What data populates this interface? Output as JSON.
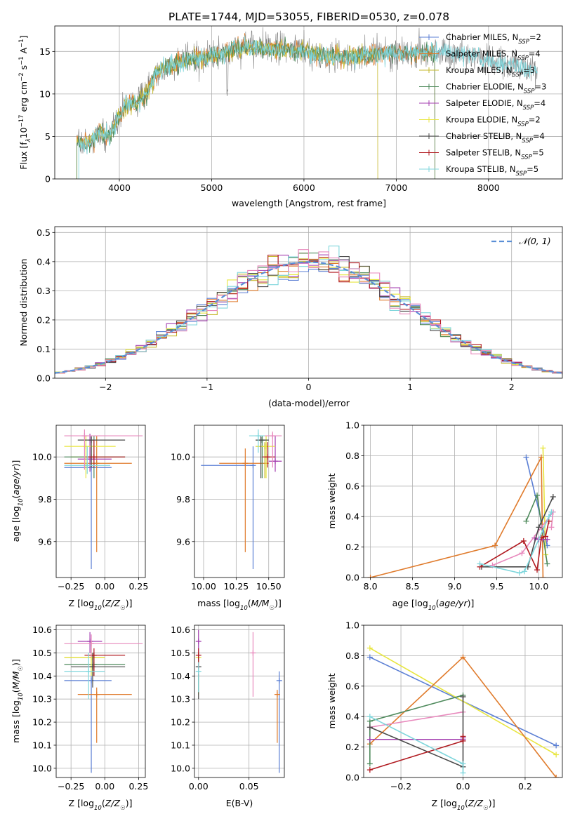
{
  "figure_title": "PLATE=1744, MJD=53055, FIBERID=0530, z=0.078",
  "colors": {
    "chabrier_miles": "#5b7fd4",
    "salpeter_miles": "#e07b2c",
    "kroupa_miles": "#c6b82c",
    "chabrier_elodie": "#4e8a5c",
    "salpeter_elodie": "#a43fb0",
    "kroupa_elodie": "#e8e63f",
    "chabrier_stelib": "#4a4a4a",
    "salpeter_stelib": "#b11b21",
    "kroupa_stelib": "#7fd6dc",
    "gaussian": "#5b8fd6",
    "pink": "#e889bd",
    "data": "#7f7f7f"
  },
  "chart_data": [
    {
      "type": "line",
      "panel": "spectrum",
      "xlabel": "wavelength [Angstrom, rest frame]",
      "ylabel": "Flux [f",
      "ylabel_parts": [
        "Flux [f",
        "λ",
        "10",
        "−17",
        " erg cm",
        "−2",
        " s",
        "−1",
        " A",
        "−1",
        "]"
      ],
      "xlim": [
        3300,
        8800
      ],
      "ylim": [
        0,
        18
      ],
      "xticks": [
        "4000",
        "5000",
        "6000",
        "7000",
        "8000"
      ],
      "yticks": [
        "0",
        "5",
        "10",
        "15"
      ],
      "legend_position": "right",
      "legend": [
        {
          "label": "Chabrier MILES, N",
          "sub": "SSP",
          "val": "=2",
          "color_key": "chabrier_miles"
        },
        {
          "label": "Salpeter MILES, N",
          "sub": "SSP",
          "val": "=4",
          "color_key": "salpeter_miles"
        },
        {
          "label": "Kroupa MILES, N",
          "sub": "SSP",
          "val": "=3",
          "color_key": "kroupa_miles"
        },
        {
          "label": "Chabrier ELODIE, N",
          "sub": "SSP",
          "val": "=3",
          "color_key": "chabrier_elodie"
        },
        {
          "label": "Salpeter ELODIE, N",
          "sub": "SSP",
          "val": "=4",
          "color_key": "salpeter_elodie"
        },
        {
          "label": "Kroupa ELODIE, N",
          "sub": "SSP",
          "val": "=2",
          "color_key": "kroupa_elodie"
        },
        {
          "label": "Chabrier STELIB, N",
          "sub": "SSP",
          "val": "=4",
          "color_key": "chabrier_stelib"
        },
        {
          "label": "Salpeter STELIB, N",
          "sub": "SSP",
          "val": "=5",
          "color_key": "salpeter_stelib"
        },
        {
          "label": "Kroupa STELIB, N",
          "sub": "SSP",
          "val": "=5",
          "color_key": "kroupa_stelib"
        }
      ],
      "continuum": [
        [
          3540,
          4.5
        ],
        [
          3650,
          4.0
        ],
        [
          3800,
          5.5
        ],
        [
          3900,
          5.0
        ],
        [
          4000,
          7.5
        ],
        [
          4100,
          9.0
        ],
        [
          4200,
          9.0
        ],
        [
          4300,
          10.0
        ],
        [
          4400,
          12.5
        ],
        [
          4600,
          13.5
        ],
        [
          4800,
          14.2
        ],
        [
          5000,
          14.5
        ],
        [
          5200,
          15.0
        ],
        [
          5400,
          15.5
        ],
        [
          5600,
          15.3
        ],
        [
          5800,
          15.3
        ],
        [
          6000,
          15.0
        ],
        [
          6200,
          14.5
        ],
        [
          6400,
          14.3
        ],
        [
          6600,
          14.5
        ],
        [
          6800,
          14.8
        ],
        [
          7000,
          14.8
        ],
        [
          7200,
          14.8
        ],
        [
          7400,
          15.0
        ],
        [
          7600,
          14.8
        ],
        [
          7800,
          14.5
        ],
        [
          8000,
          14.0
        ],
        [
          8200,
          13.5
        ],
        [
          8400,
          13.0
        ],
        [
          8530,
          12.8
        ]
      ]
    },
    {
      "type": "step",
      "panel": "residuals",
      "xlabel": "(data-model)/error",
      "ylabel": "Normed distribution",
      "xlim": [
        -2.5,
        2.5
      ],
      "ylim": [
        0,
        0.52
      ],
      "xticks": [
        "−2",
        "−1",
        "0",
        "1",
        "2"
      ],
      "yticks": [
        "0.0",
        "0.1",
        "0.2",
        "0.3",
        "0.4",
        "0.5"
      ],
      "gaussian_label": "𝒩(0, 1)",
      "bin_width": 0.1
    },
    {
      "type": "scatter",
      "panel": "age_vs_Z",
      "xlabel": "Z [log",
      "ylabel": "age  [log",
      "xlim": [
        -0.36,
        0.3
      ],
      "ylim": [
        9.43,
        10.15
      ],
      "xticks": [
        "−0.25",
        "0.00",
        "0.25"
      ],
      "yticks": [
        "9.6",
        "9.8",
        "10.0"
      ],
      "points": [
        {
          "c": "chabrier_miles",
          "x": -0.1,
          "y": 9.95,
          "xl": -0.3,
          "xh": 0.05,
          "yl": 9.47,
          "yh": 10.05
        },
        {
          "c": "salpeter_miles",
          "x": -0.06,
          "y": 9.97,
          "xl": -0.3,
          "xh": 0.2,
          "yl": 9.55,
          "yh": 10.1
        },
        {
          "c": "kroupa_miles",
          "x": -0.1,
          "y": 10.0,
          "xl": -0.25,
          "xh": 0.05,
          "yl": 9.95,
          "yh": 10.08
        },
        {
          "c": "chabrier_elodie",
          "x": -0.08,
          "y": 10.0,
          "xl": -0.3,
          "xh": 0.15,
          "yl": 9.9,
          "yh": 10.1
        },
        {
          "c": "salpeter_elodie",
          "x": -0.11,
          "y": 9.99,
          "xl": -0.2,
          "xh": 0.05,
          "yl": 9.93,
          "yh": 10.11
        },
        {
          "c": "kroupa_elodie",
          "x": -0.14,
          "y": 10.05,
          "xl": -0.3,
          "xh": 0.08,
          "yl": 9.9,
          "yh": 10.1
        },
        {
          "c": "chabrier_stelib",
          "x": -0.1,
          "y": 10.08,
          "xl": -0.2,
          "xh": 0.15,
          "yl": 9.95,
          "yh": 10.1
        },
        {
          "c": "salpeter_stelib",
          "x": -0.08,
          "y": 10.0,
          "xl": -0.14,
          "xh": 0.15,
          "yl": 9.95,
          "yh": 10.08
        },
        {
          "c": "kroupa_stelib",
          "x": -0.13,
          "y": 9.96,
          "xl": -0.3,
          "xh": 0.04,
          "yl": 9.92,
          "yh": 10.05
        },
        {
          "c": "pink",
          "x": -0.15,
          "y": 10.1,
          "xl": -0.3,
          "xh": 0.28,
          "yl": 9.94,
          "yh": 10.13
        }
      ]
    },
    {
      "type": "scatter",
      "panel": "age_vs_mass",
      "xlabel": "mass [log",
      "xlim": [
        9.93,
        10.62
      ],
      "ylim": [
        9.43,
        10.15
      ],
      "xticks": [
        "10.00",
        "10.25",
        "10.50"
      ],
      "yticks": [
        "9.6",
        "9.8",
        "10.0"
      ],
      "points": [
        {
          "c": "chabrier_miles",
          "x": 10.38,
          "y": 9.96,
          "xl": 9.98,
          "xh": 10.38,
          "yl": 9.47,
          "yh": 10.05
        },
        {
          "c": "salpeter_miles",
          "x": 10.32,
          "y": 9.97,
          "xl": 10.12,
          "xh": 10.5,
          "yl": 9.55,
          "yh": 10.04
        },
        {
          "c": "kroupa_miles",
          "x": 10.47,
          "y": 10.05,
          "xl": 10.4,
          "xh": 10.5,
          "yl": 9.9,
          "yh": 10.07
        },
        {
          "c": "chabrier_elodie",
          "x": 10.45,
          "y": 10.08,
          "xl": 10.4,
          "xh": 10.5,
          "yl": 9.9,
          "yh": 10.1
        },
        {
          "c": "salpeter_elodie",
          "x": 10.55,
          "y": 9.98,
          "xl": 10.5,
          "xh": 10.6,
          "yl": 9.93,
          "yh": 10.1
        },
        {
          "c": "kroupa_elodie",
          "x": 10.48,
          "y": 10.05,
          "xl": 10.4,
          "xh": 10.55,
          "yl": 9.9,
          "yh": 10.1
        },
        {
          "c": "chabrier_stelib",
          "x": 10.44,
          "y": 10.08,
          "xl": 10.4,
          "xh": 10.5,
          "yl": 9.9,
          "yh": 10.1
        },
        {
          "c": "salpeter_stelib",
          "x": 10.49,
          "y": 10.0,
          "xl": 10.45,
          "xh": 10.55,
          "yl": 9.95,
          "yh": 10.07
        },
        {
          "c": "kroupa_stelib",
          "x": 10.42,
          "y": 10.1,
          "xl": 10.35,
          "xh": 10.47,
          "yl": 10.02,
          "yh": 10.13
        },
        {
          "c": "pink",
          "x": 10.53,
          "y": 10.1,
          "xl": 10.47,
          "xh": 10.6,
          "yl": 9.95,
          "yh": 10.12
        }
      ]
    },
    {
      "type": "line",
      "panel": "weight_vs_age",
      "xlabel": "age  [log",
      "ylabel": "mass weight",
      "xlim": [
        7.92,
        10.28
      ],
      "ylim": [
        0,
        1.0
      ],
      "xticks": [
        "8.0",
        "8.5",
        "9.0",
        "9.5",
        "10.0"
      ],
      "yticks": [
        "0.0",
        "0.2",
        "0.4",
        "0.6",
        "0.8",
        "1.0"
      ],
      "series": [
        {
          "c": "chabrier_miles",
          "x": [
            9.85,
            10.1
          ],
          "y": [
            0.79,
            0.21
          ]
        },
        {
          "c": "salpeter_miles",
          "x": [
            8.0,
            9.48,
            10.03,
            10.05
          ],
          "y": [
            0.0,
            0.21,
            0.79,
            0.0
          ]
        },
        {
          "c": "kroupa_elodie",
          "x": [
            10.05,
            10.08
          ],
          "y": [
            0.85,
            0.15
          ]
        },
        {
          "c": "chabrier_elodie",
          "x": [
            9.85,
            9.98,
            10.1
          ],
          "y": [
            0.37,
            0.54,
            0.09
          ]
        },
        {
          "c": "salpeter_elodie",
          "x": [
            9.95,
            10.0,
            10.05,
            10.1
          ],
          "y": [
            0.26,
            0.25,
            0.25,
            0.25
          ]
        },
        {
          "c": "pink",
          "x": [
            9.45,
            9.8,
            10.03,
            10.17,
            10.15
          ],
          "y": [
            0.08,
            0.16,
            0.33,
            0.43,
            0.33
          ]
        },
        {
          "c": "chabrier_stelib",
          "x": [
            9.32,
            9.87,
            10.0,
            10.17
          ],
          "y": [
            0.07,
            0.07,
            0.33,
            0.53
          ]
        },
        {
          "c": "salpeter_stelib",
          "x": [
            9.3,
            9.82,
            9.98,
            10.03,
            10.08,
            10.12
          ],
          "y": [
            0.07,
            0.24,
            0.05,
            0.26,
            0.27,
            0.37
          ]
        },
        {
          "c": "kroupa_stelib",
          "x": [
            9.3,
            9.77,
            9.83,
            10.12,
            10.15
          ],
          "y": [
            0.09,
            0.03,
            0.04,
            0.4,
            0.43
          ]
        }
      ]
    },
    {
      "type": "scatter",
      "panel": "mass_vs_Z",
      "xlabel": "Z [log",
      "ylabel": "mass [log",
      "xlim": [
        -0.36,
        0.3
      ],
      "ylim": [
        9.96,
        10.62
      ],
      "xticks": [
        "−0.25",
        "0.00",
        "0.25"
      ],
      "yticks": [
        "10.0",
        "10.1",
        "10.2",
        "10.3",
        "10.4",
        "10.5",
        "10.6"
      ],
      "points": [
        {
          "c": "chabrier_miles",
          "x": -0.1,
          "y": 10.38,
          "xl": -0.3,
          "xh": 0.05,
          "yl": 9.98,
          "yh": 10.42
        },
        {
          "c": "salpeter_miles",
          "x": -0.06,
          "y": 10.32,
          "xl": -0.2,
          "xh": 0.2,
          "yl": 10.11,
          "yh": 10.35
        },
        {
          "c": "kroupa_miles",
          "x": -0.09,
          "y": 10.48,
          "xl": -0.3,
          "xh": 0.0,
          "yl": 10.4,
          "yh": 10.5
        },
        {
          "c": "chabrier_elodie",
          "x": -0.08,
          "y": 10.45,
          "xl": -0.3,
          "xh": 0.15,
          "yl": 10.4,
          "yh": 10.5
        },
        {
          "c": "salpeter_elodie",
          "x": -0.11,
          "y": 10.55,
          "xl": -0.2,
          "xh": -0.02,
          "yl": 10.5,
          "yh": 10.59
        },
        {
          "c": "kroupa_elodie",
          "x": -0.1,
          "y": 10.48,
          "xl": -0.3,
          "xh": 0.0,
          "yl": 10.4,
          "yh": 10.55
        },
        {
          "c": "chabrier_stelib",
          "x": -0.09,
          "y": 10.44,
          "xl": -0.25,
          "xh": 0.15,
          "yl": 10.35,
          "yh": 10.5
        },
        {
          "c": "salpeter_stelib",
          "x": -0.08,
          "y": 10.49,
          "xl": -0.15,
          "xh": 0.15,
          "yl": 10.4,
          "yh": 10.52
        },
        {
          "c": "kroupa_stelib",
          "x": -0.12,
          "y": 10.42,
          "xl": -0.3,
          "xh": 0.0,
          "yl": 10.3,
          "yh": 10.5
        },
        {
          "c": "pink",
          "x": -0.1,
          "y": 10.54,
          "xl": -0.3,
          "xh": 0.28,
          "yl": 10.48,
          "yh": 10.58
        }
      ]
    },
    {
      "type": "scatter",
      "panel": "mass_vs_ebv",
      "xlabel": "E(B-V)",
      "xlim": [
        -0.004,
        0.085
      ],
      "ylim": [
        9.96,
        10.62
      ],
      "xticks": [
        "0.00",
        "0.05"
      ],
      "yticks": [
        "10.0",
        "10.1",
        "10.2",
        "10.3",
        "10.4",
        "10.5",
        "10.6"
      ],
      "points": [
        {
          "c": "chabrier_miles",
          "x": 0.08,
          "y": 10.38,
          "yl": 9.98,
          "yh": 10.42
        },
        {
          "c": "salpeter_miles",
          "x": 0.078,
          "y": 10.32,
          "yl": 10.11,
          "yh": 10.34
        },
        {
          "c": "pink",
          "x": 0.054,
          "y": 10.5,
          "yl": 10.31,
          "yh": 10.59
        },
        {
          "c": "kroupa_elodie",
          "x": 0.0,
          "y": 10.48,
          "yl": 10.32,
          "yh": 10.5
        },
        {
          "c": "salpeter_elodie",
          "x": 0.0,
          "y": 10.55,
          "yl": 10.47,
          "yh": 10.6
        },
        {
          "c": "chabrier_stelib",
          "x": 0.0,
          "y": 10.44,
          "yl": 10.3,
          "yh": 10.5
        },
        {
          "c": "salpeter_stelib",
          "x": 0.0,
          "y": 10.49,
          "yl": 10.4,
          "yh": 10.52
        },
        {
          "c": "kroupa_stelib",
          "x": 0.0,
          "y": 10.42,
          "yl": 10.33,
          "yh": 10.46
        }
      ]
    },
    {
      "type": "line",
      "panel": "weight_vs_Z",
      "xlabel": "Z [log",
      "ylabel": "mass weight",
      "xlim": [
        -0.32,
        0.32
      ],
      "ylim": [
        0,
        1.0
      ],
      "xticks": [
        "−0.2",
        "0.0",
        "0.2"
      ],
      "yticks": [
        "0.0",
        "0.2",
        "0.4",
        "0.6",
        "0.8",
        "1.0"
      ],
      "series": [
        {
          "c": "chabrier_miles",
          "x": [
            -0.3,
            0.3
          ],
          "y": [
            0.79,
            0.21
          ]
        },
        {
          "c": "kroupa_elodie",
          "x": [
            -0.3,
            0.3
          ],
          "y": [
            0.85,
            0.15
          ]
        },
        {
          "c": "salpeter_miles",
          "x": [
            -0.3,
            0.0,
            0.3
          ],
          "y": [
            0.22,
            0.79,
            0.0
          ]
        },
        {
          "c": "chabrier_elodie",
          "x": [
            -0.3,
            -0.3,
            0.0
          ],
          "y": [
            0.09,
            0.37,
            0.54
          ]
        },
        {
          "c": "salpeter_elodie",
          "x": [
            -0.3,
            0.0,
            0.0
          ],
          "y": [
            0.25,
            0.25,
            0.26
          ]
        },
        {
          "c": "pink",
          "x": [
            -0.3,
            0.0
          ],
          "y": [
            0.33,
            0.43
          ]
        },
        {
          "c": "chabrier_stelib",
          "x": [
            -0.3,
            0.0,
            0.0
          ],
          "y": [
            0.33,
            0.07,
            0.53
          ]
        },
        {
          "c": "salpeter_stelib",
          "x": [
            -0.3,
            0.0,
            0.0
          ],
          "y": [
            0.05,
            0.24,
            0.27
          ]
        },
        {
          "c": "kroupa_stelib",
          "x": [
            -0.3,
            0.0,
            0.0
          ],
          "y": [
            0.4,
            0.09,
            0.03
          ]
        }
      ]
    }
  ]
}
